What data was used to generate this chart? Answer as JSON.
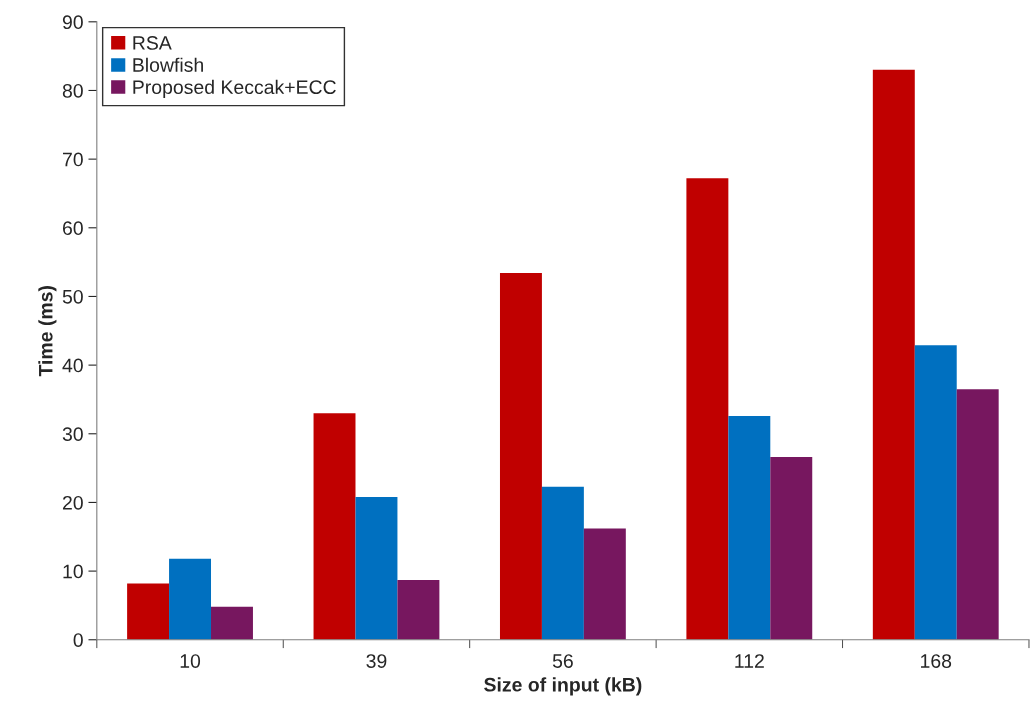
{
  "chart_data": {
    "type": "bar",
    "xlabel": "Size of input (kB)",
    "ylabel": "Time (ms)",
    "categories": [
      "10",
      "39",
      "56",
      "112",
      "168"
    ],
    "series": [
      {
        "name": "RSA",
        "color": "#c00000",
        "values": [
          8.2,
          33.0,
          53.4,
          67.2,
          83.0
        ]
      },
      {
        "name": "Blowfish",
        "color": "#0070c0",
        "values": [
          11.8,
          20.8,
          22.3,
          32.6,
          42.9
        ]
      },
      {
        "name": "Proposed Keccak+ECC",
        "color": "#77175f",
        "values": [
          4.8,
          8.7,
          16.2,
          26.6,
          36.5
        ]
      }
    ],
    "ylim": [
      0,
      90
    ],
    "yticks": [
      0,
      10,
      20,
      30,
      40,
      50,
      60,
      70,
      80,
      90
    ],
    "grid": false,
    "legend": "top left"
  }
}
